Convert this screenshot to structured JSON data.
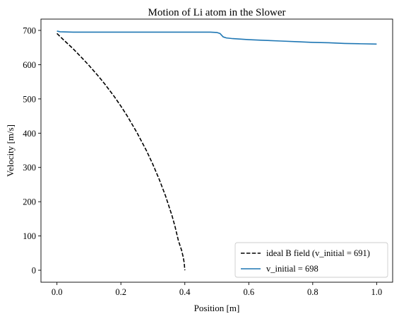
{
  "chart_data": {
    "type": "line",
    "title": "Motion of Li atom in the Slower",
    "xlabel": "Position [m]",
    "ylabel": "Velocity [m/s]",
    "xlim": [
      -0.05,
      1.05
    ],
    "ylim": [
      -35,
      733
    ],
    "x_ticks": [
      0.0,
      0.2,
      0.4,
      0.6,
      0.8,
      1.0
    ],
    "x_tick_labels": [
      "0.0",
      "0.2",
      "0.4",
      "0.6",
      "0.8",
      "1.0"
    ],
    "y_ticks": [
      0,
      100,
      200,
      300,
      400,
      500,
      600,
      700
    ],
    "y_tick_labels": [
      "0",
      "100",
      "200",
      "300",
      "400",
      "500",
      "600",
      "700"
    ],
    "grid": false,
    "legend_position": "lower-right",
    "series": [
      {
        "name": "ideal B field (v_initial = 691)",
        "color": "#000000",
        "line_style": "dashed",
        "x": [
          0.0,
          0.02,
          0.05,
          0.08,
          0.1,
          0.13,
          0.15,
          0.18,
          0.2,
          0.22,
          0.25,
          0.28,
          0.3,
          0.32,
          0.34,
          0.36,
          0.37,
          0.38,
          0.39,
          0.395,
          0.398,
          0.4
        ],
        "y": [
          691,
          673,
          647,
          618,
          598,
          566,
          543,
          506,
          479,
          450,
          402,
          349,
          309,
          265,
          216,
          159,
          125,
          86,
          58,
          38,
          22,
          0
        ]
      },
      {
        "name": "v_initial = 698",
        "color": "#1f77b4",
        "line_style": "solid",
        "x": [
          0.0,
          0.01,
          0.05,
          0.1,
          0.2,
          0.3,
          0.4,
          0.45,
          0.48,
          0.5,
          0.51,
          0.515,
          0.52,
          0.53,
          0.55,
          0.6,
          0.65,
          0.7,
          0.75,
          0.8,
          0.85,
          0.9,
          0.95,
          1.0
        ],
        "y": [
          698,
          696,
          695,
          695,
          695,
          695,
          695,
          695,
          695,
          694,
          691,
          686,
          681,
          678,
          676,
          673,
          671,
          669,
          667,
          665,
          664,
          662,
          661,
          660
        ]
      }
    ]
  }
}
